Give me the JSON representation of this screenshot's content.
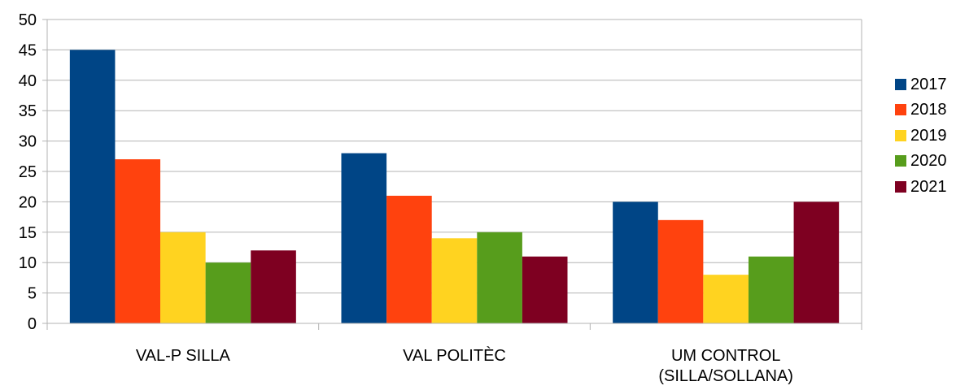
{
  "chart_data": {
    "type": "bar",
    "categories": [
      "VAL-P SILLA",
      "VAL POLITÈC",
      "UM CONTROL (SILLA/SOLLANA)"
    ],
    "category_label_lines": [
      [
        "VAL-P SILLA"
      ],
      [
        "VAL POLITÈC"
      ],
      [
        "UM CONTROL",
        "(SILLA/SOLLANA)"
      ]
    ],
    "series": [
      {
        "name": "2017",
        "color": "#004586",
        "values": [
          45,
          28,
          20
        ]
      },
      {
        "name": "2018",
        "color": "#ff420e",
        "values": [
          27,
          21,
          17
        ]
      },
      {
        "name": "2019",
        "color": "#ffd320",
        "values": [
          15,
          14,
          8
        ]
      },
      {
        "name": "2020",
        "color": "#579d1c",
        "values": [
          10,
          15,
          11
        ]
      },
      {
        "name": "2021",
        "color": "#7e0021",
        "values": [
          12,
          11,
          20
        ]
      }
    ],
    "y_ticks": [
      "0",
      "5",
      "10",
      "15",
      "20",
      "25",
      "30",
      "35",
      "40",
      "45",
      "50"
    ],
    "ylim": [
      0,
      50
    ],
    "grid": true,
    "legend_position": "right",
    "title": "",
    "xlabel": "",
    "ylabel": ""
  }
}
